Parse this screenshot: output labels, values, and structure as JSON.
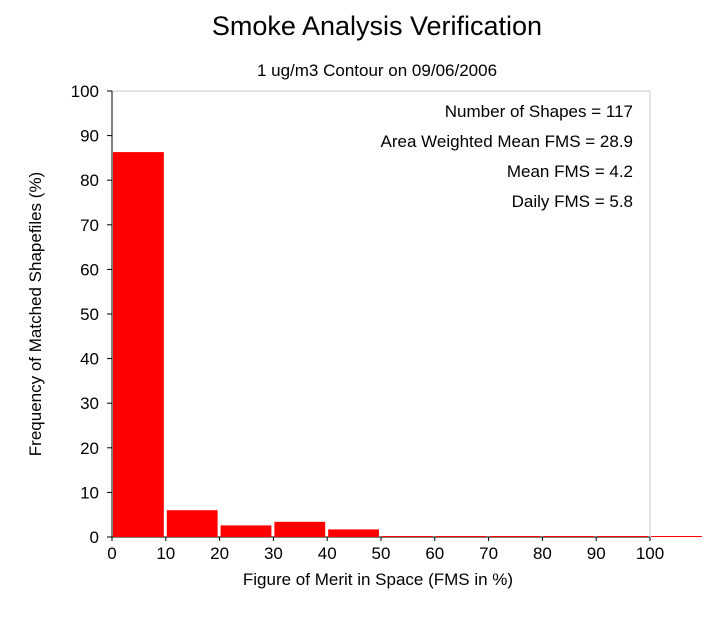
{
  "chart_data": {
    "type": "bar",
    "title": "Smoke Analysis Verification",
    "subtitle": "1 ug/m3 Contour on 09/06/2006",
    "xlabel": "Figure of Merit in Space (FMS in %)",
    "ylabel": "Frequency of Matched Shapefiles (%)",
    "xlim": [
      0,
      110
    ],
    "ylim": [
      0,
      100
    ],
    "xticks": [
      0,
      10,
      20,
      30,
      40,
      50,
      60,
      70,
      80,
      90,
      100
    ],
    "yticks": [
      0,
      10,
      20,
      30,
      40,
      50,
      60,
      70,
      80,
      90,
      100
    ],
    "bins": [
      {
        "start": 0,
        "end": 10,
        "value": 86.3
      },
      {
        "start": 10,
        "end": 20,
        "value": 6.0
      },
      {
        "start": 20,
        "end": 30,
        "value": 2.6
      },
      {
        "start": 30,
        "end": 40,
        "value": 3.4
      },
      {
        "start": 40,
        "end": 50,
        "value": 1.7
      },
      {
        "start": 50,
        "end": 60,
        "value": 0
      },
      {
        "start": 60,
        "end": 70,
        "value": 0
      },
      {
        "start": 70,
        "end": 80,
        "value": 0
      },
      {
        "start": 80,
        "end": 90,
        "value": 0
      },
      {
        "start": 90,
        "end": 100,
        "value": 0
      },
      {
        "start": 100,
        "end": 110,
        "value": 0
      }
    ],
    "bar_color": "#ff0000",
    "grid": false,
    "annotations": [
      "Number of Shapes = 117",
      "Area Weighted Mean FMS = 28.9",
      "Mean FMS = 4.2",
      "Daily FMS = 5.8"
    ]
  },
  "colors": {
    "bar": "#ff0000",
    "axis": "#000000",
    "frame": "#c8c8c8",
    "background": "#ffffff"
  }
}
